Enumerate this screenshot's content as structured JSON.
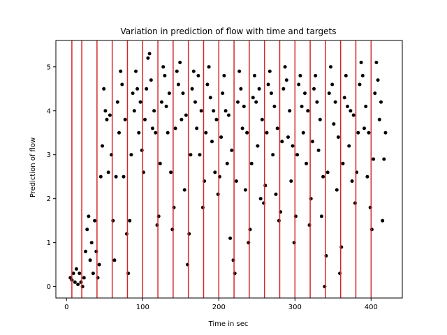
{
  "chart_data": {
    "type": "scatter",
    "title": "Variation in prediction of flow with time and targets",
    "xlabel": "Time in sec",
    "ylabel": "Prediction of flow",
    "xlim": [
      -14,
      441
    ],
    "ylim": [
      -0.26,
      5.6
    ],
    "xticks": [
      0,
      100,
      200,
      300,
      400
    ],
    "yticks": [
      0,
      1,
      2,
      3,
      4,
      5
    ],
    "grid": false,
    "marker_color": "#000000",
    "target_line_color": "#d62728",
    "target_times": [
      7,
      20,
      40,
      60,
      80,
      100,
      120,
      140,
      160,
      180,
      200,
      220,
      240,
      260,
      280,
      300,
      320,
      340,
      360,
      380,
      400
    ],
    "series": [
      {
        "values": [
          [
            5,
            0.2
          ],
          [
            7,
            0.15
          ],
          [
            9,
            0.3
          ],
          [
            11,
            0.1
          ],
          [
            13,
            0.4
          ],
          [
            15,
            0.05
          ],
          [
            17,
            0.3
          ],
          [
            19,
            0.1
          ],
          [
            21,
            0.0
          ],
          [
            23,
            0.2
          ],
          [
            25,
            0.8
          ],
          [
            27,
            1.3
          ],
          [
            29,
            1.6
          ],
          [
            31,
            0.6
          ],
          [
            33,
            1.0
          ],
          [
            35,
            0.3
          ],
          [
            37,
            1.5
          ],
          [
            39,
            0.8
          ],
          [
            41,
            0.2
          ],
          [
            43,
            0.5
          ],
          [
            45,
            2.5
          ],
          [
            47,
            3.2
          ],
          [
            49,
            4.5
          ],
          [
            51,
            4.0
          ],
          [
            53,
            3.8
          ],
          [
            55,
            2.6
          ],
          [
            57,
            3.9
          ],
          [
            59,
            3.0
          ],
          [
            61,
            1.5
          ],
          [
            63,
            0.6
          ],
          [
            65,
            2.5
          ],
          [
            67,
            4.2
          ],
          [
            69,
            3.5
          ],
          [
            71,
            4.9
          ],
          [
            73,
            4.6
          ],
          [
            75,
            2.5
          ],
          [
            77,
            3.8
          ],
          [
            79,
            1.2
          ],
          [
            81,
            0.3
          ],
          [
            83,
            1.5
          ],
          [
            85,
            3.0
          ],
          [
            87,
            4.4
          ],
          [
            89,
            4.0
          ],
          [
            91,
            4.9
          ],
          [
            93,
            4.5
          ],
          [
            95,
            3.5
          ],
          [
            97,
            4.2
          ],
          [
            99,
            3.1
          ],
          [
            101,
            2.6
          ],
          [
            103,
            3.8
          ],
          [
            105,
            4.5
          ],
          [
            107,
            5.2
          ],
          [
            109,
            5.3
          ],
          [
            111,
            4.7
          ],
          [
            113,
            3.6
          ],
          [
            115,
            4.0
          ],
          [
            117,
            3.5
          ],
          [
            119,
            1.4
          ],
          [
            121,
            1.6
          ],
          [
            123,
            2.8
          ],
          [
            125,
            4.2
          ],
          [
            127,
            5.0
          ],
          [
            129,
            4.8
          ],
          [
            131,
            4.1
          ],
          [
            133,
            3.5
          ],
          [
            135,
            4.4
          ],
          [
            137,
            2.6
          ],
          [
            139,
            1.3
          ],
          [
            141,
            1.8
          ],
          [
            143,
            3.6
          ],
          [
            145,
            4.9
          ],
          [
            147,
            4.6
          ],
          [
            149,
            5.1
          ],
          [
            151,
            3.8
          ],
          [
            153,
            4.4
          ],
          [
            155,
            2.2
          ],
          [
            157,
            3.9
          ],
          [
            159,
            0.5
          ],
          [
            161,
            1.2
          ],
          [
            163,
            3.0
          ],
          [
            165,
            4.5
          ],
          [
            167,
            4.9
          ],
          [
            169,
            4.2
          ],
          [
            171,
            3.6
          ],
          [
            173,
            4.8
          ],
          [
            175,
            3.0
          ],
          [
            177,
            4.0
          ],
          [
            179,
            1.8
          ],
          [
            181,
            2.4
          ],
          [
            183,
            3.5
          ],
          [
            185,
            4.6
          ],
          [
            187,
            5.0
          ],
          [
            189,
            4.3
          ],
          [
            191,
            3.3
          ],
          [
            193,
            4.0
          ],
          [
            195,
            2.6
          ],
          [
            197,
            3.8
          ],
          [
            199,
            2.1
          ],
          [
            201,
            2.5
          ],
          [
            203,
            3.4
          ],
          [
            205,
            4.4
          ],
          [
            207,
            4.8
          ],
          [
            209,
            4.0
          ],
          [
            211,
            2.8
          ],
          [
            213,
            3.9
          ],
          [
            215,
            1.1
          ],
          [
            217,
            3.1
          ],
          [
            219,
            0.6
          ],
          [
            221,
            0.3
          ],
          [
            223,
            2.4
          ],
          [
            225,
            4.2
          ],
          [
            227,
            4.9
          ],
          [
            229,
            4.5
          ],
          [
            231,
            3.6
          ],
          [
            233,
            4.1
          ],
          [
            235,
            2.2
          ],
          [
            237,
            3.5
          ],
          [
            239,
            1.0
          ],
          [
            241,
            1.3
          ],
          [
            243,
            2.8
          ],
          [
            245,
            4.3
          ],
          [
            247,
            4.8
          ],
          [
            249,
            4.2
          ],
          [
            251,
            3.2
          ],
          [
            253,
            4.5
          ],
          [
            255,
            2.0
          ],
          [
            257,
            3.8
          ],
          [
            259,
            1.9
          ],
          [
            261,
            2.3
          ],
          [
            263,
            3.5
          ],
          [
            265,
            4.6
          ],
          [
            267,
            4.9
          ],
          [
            269,
            4.4
          ],
          [
            271,
            3.0
          ],
          [
            273,
            4.1
          ],
          [
            275,
            2.1
          ],
          [
            277,
            3.6
          ],
          [
            279,
            1.5
          ],
          [
            281,
            1.7
          ],
          [
            283,
            3.3
          ],
          [
            285,
            4.5
          ],
          [
            287,
            5.0
          ],
          [
            289,
            4.7
          ],
          [
            291,
            3.4
          ],
          [
            293,
            4.0
          ],
          [
            295,
            2.4
          ],
          [
            297,
            3.2
          ],
          [
            299,
            1.0
          ],
          [
            301,
            1.6
          ],
          [
            303,
            3.0
          ],
          [
            305,
            4.6
          ],
          [
            307,
            4.8
          ],
          [
            309,
            4.1
          ],
          [
            311,
            3.5
          ],
          [
            313,
            4.4
          ],
          [
            315,
            2.8
          ],
          [
            317,
            4.0
          ],
          [
            319,
            1.4
          ],
          [
            321,
            2.0
          ],
          [
            323,
            3.3
          ],
          [
            325,
            4.5
          ],
          [
            327,
            4.8
          ],
          [
            329,
            4.2
          ],
          [
            331,
            3.1
          ],
          [
            333,
            3.8
          ],
          [
            335,
            1.6
          ],
          [
            337,
            2.5
          ],
          [
            339,
            0.0
          ],
          [
            341,
            0.7
          ],
          [
            343,
            2.6
          ],
          [
            345,
            4.4
          ],
          [
            347,
            5.0
          ],
          [
            349,
            4.6
          ],
          [
            351,
            3.7
          ],
          [
            353,
            4.2
          ],
          [
            355,
            2.2
          ],
          [
            357,
            3.4
          ],
          [
            359,
            0.3
          ],
          [
            361,
            0.9
          ],
          [
            363,
            2.8
          ],
          [
            365,
            4.3
          ],
          [
            367,
            4.8
          ],
          [
            369,
            4.1
          ],
          [
            371,
            3.2
          ],
          [
            373,
            4.0
          ],
          [
            375,
            2.4
          ],
          [
            377,
            3.9
          ],
          [
            379,
            1.9
          ],
          [
            381,
            2.6
          ],
          [
            383,
            3.5
          ],
          [
            385,
            4.6
          ],
          [
            387,
            5.1
          ],
          [
            389,
            4.8
          ],
          [
            391,
            3.6
          ],
          [
            393,
            4.1
          ],
          [
            395,
            2.5
          ],
          [
            397,
            3.5
          ],
          [
            399,
            1.8
          ],
          [
            401,
            1.3
          ],
          [
            403,
            2.9
          ],
          [
            405,
            4.4
          ],
          [
            407,
            5.1
          ],
          [
            409,
            4.7
          ],
          [
            411,
            3.8
          ],
          [
            413,
            4.2
          ],
          [
            415,
            1.5
          ],
          [
            417,
            2.9
          ],
          [
            419,
            3.5
          ]
        ]
      }
    ]
  }
}
